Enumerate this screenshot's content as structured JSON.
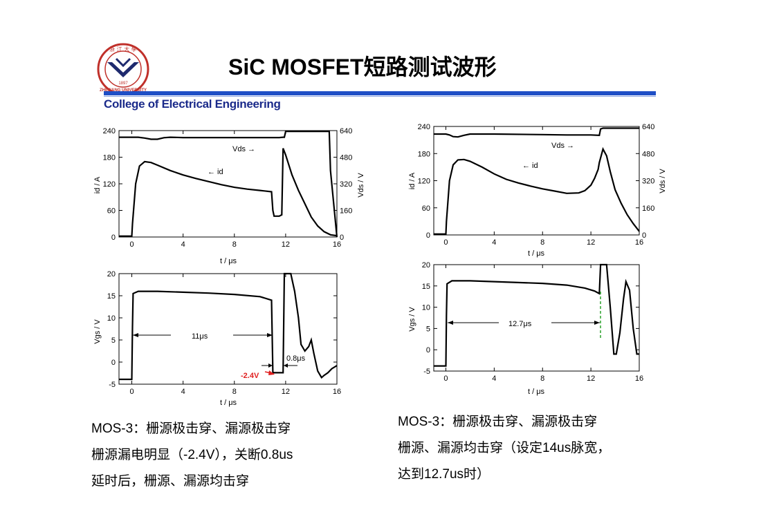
{
  "header": {
    "title": "SiC MOSFET短路测试波形",
    "college": "College of Electrical Engineering",
    "logo_text_top": "浙 江 大 學",
    "logo_year": "1897",
    "logo_text_bottom": "ZHEJIANG UNIVERSITY"
  },
  "captions": {
    "left": [
      "MOS-3：栅源极击穿、漏源极击穿",
      "栅源漏电明显（-2.4V），关断0.8us",
      "延时后，栅源、漏源均击穿"
    ],
    "right": [
      "MOS-3：栅源极击穿、漏源极击穿",
      "栅源、漏源均击穿（设定14us脉宽，",
      "达到12.7us时）"
    ]
  },
  "chart_data": [
    {
      "id": "left-top",
      "type": "line",
      "xlabel": "t / μs",
      "ylabel": "id / A",
      "y2label": "Vds / V",
      "xlim": [
        -1,
        16
      ],
      "ylim": [
        0,
        240
      ],
      "y2lim": [
        0,
        640
      ],
      "xticks": [
        "0",
        "4",
        "8",
        "12",
        "16"
      ],
      "yticks": [
        "0",
        "60",
        "120",
        "180",
        "240"
      ],
      "y2ticks": [
        "0",
        "160",
        "320",
        "480",
        "640"
      ],
      "annotations": [
        {
          "text": "Vds →"
        },
        {
          "text": "← id"
        }
      ],
      "series": [
        {
          "name": "id",
          "axis": "y",
          "x": [
            -1,
            0,
            0.05,
            0.3,
            0.6,
            1,
            1.5,
            2,
            3,
            4,
            5,
            6,
            7,
            8,
            9,
            10,
            10.9,
            11,
            11.1,
            11.5,
            11.7,
            11.8,
            12,
            12.5,
            13,
            13.5,
            14,
            14.5,
            15,
            15.5,
            16
          ],
          "y": [
            2,
            2,
            30,
            120,
            160,
            170,
            168,
            162,
            150,
            140,
            132,
            125,
            118,
            112,
            108,
            105,
            102,
            60,
            47,
            47,
            50,
            200,
            185,
            140,
            105,
            75,
            45,
            25,
            12,
            5,
            3
          ]
        },
        {
          "name": "Vds",
          "axis": "y2",
          "x": [
            -1,
            0,
            0.5,
            1,
            1.5,
            2,
            2.5,
            3,
            4,
            6,
            8,
            10,
            11,
            11.5,
            11.8,
            11.9,
            12,
            12.5,
            14,
            15,
            15.4,
            15.5,
            16
          ],
          "y": [
            600,
            600,
            600,
            595,
            588,
            588,
            597,
            600,
            598,
            598,
            598,
            598,
            598,
            598,
            600,
            600,
            635,
            635,
            635,
            635,
            635,
            400,
            0
          ]
        }
      ]
    },
    {
      "id": "left-bottom",
      "type": "line",
      "xlabel": "t / μs",
      "ylabel": "Vgs / V",
      "xlim": [
        -1,
        16
      ],
      "ylim": [
        -5,
        20
      ],
      "xticks": [
        "0",
        "4",
        "8",
        "12",
        "16"
      ],
      "yticks": [
        "-5",
        "0",
        "5",
        "10",
        "15",
        "20"
      ],
      "annotations": [
        {
          "text": "11μs"
        },
        {
          "text": "0.8μs"
        },
        {
          "text": "-2.4V",
          "color": "#e02020"
        }
      ],
      "series": [
        {
          "name": "Vgs",
          "x": [
            -1,
            0,
            0.05,
            0.1,
            0.5,
            1,
            2,
            4,
            6,
            8,
            10,
            10.9,
            11,
            11.1,
            11.5,
            11.7,
            11.8,
            11.9,
            12,
            12.4,
            12.7,
            13,
            13.2,
            13.5,
            13.8,
            14,
            14.2,
            14.5,
            14.8,
            15,
            15.3,
            15.6,
            16
          ],
          "y": [
            -3.9,
            -3.9,
            8,
            15.5,
            16,
            16,
            16,
            15.8,
            15.6,
            15.3,
            14.8,
            14,
            -2.3,
            -2.4,
            -2.4,
            -2.4,
            -2.4,
            20,
            20,
            20,
            16,
            10,
            4,
            2.5,
            3.5,
            5,
            2,
            -2,
            -3.5,
            -3,
            -2.4,
            -1.5,
            -0.8
          ]
        }
      ]
    },
    {
      "id": "right-top",
      "type": "line",
      "xlabel": "t / μs",
      "ylabel": "id / A",
      "y2label": "Vds / V",
      "xlim": [
        -1,
        16
      ],
      "ylim": [
        0,
        240
      ],
      "y2lim": [
        0,
        640
      ],
      "xticks": [
        "0",
        "4",
        "8",
        "12",
        "16"
      ],
      "yticks": [
        "0",
        "60",
        "120",
        "180",
        "240"
      ],
      "y2ticks": [
        "0",
        "160",
        "320",
        "480",
        "640"
      ],
      "annotations": [
        {
          "text": "Vds →"
        },
        {
          "text": "← id"
        }
      ],
      "series": [
        {
          "name": "id",
          "axis": "y",
          "x": [
            -1,
            0,
            0.05,
            0.3,
            0.6,
            1,
            1.5,
            2,
            3,
            4,
            5,
            6,
            7,
            8,
            9,
            10,
            11,
            11.5,
            12,
            12.3,
            12.6,
            12.7,
            13,
            13.3,
            13.6,
            14,
            14.5,
            15,
            15.5,
            16
          ],
          "y": [
            2,
            2,
            30,
            120,
            155,
            166,
            167,
            163,
            150,
            135,
            123,
            115,
            108,
            102,
            97,
            92,
            93,
            98,
            110,
            125,
            145,
            160,
            190,
            175,
            140,
            100,
            70,
            45,
            25,
            8
          ]
        },
        {
          "name": "Vds",
          "axis": "y2",
          "x": [
            -1,
            0,
            0.3,
            0.6,
            1,
            1.5,
            2,
            4,
            8,
            10,
            12,
            12.7,
            12.8,
            13,
            14,
            16
          ],
          "y": [
            595,
            595,
            590,
            580,
            578,
            588,
            595,
            595,
            592,
            590,
            590,
            588,
            625,
            630,
            630,
            630
          ]
        }
      ]
    },
    {
      "id": "right-bottom",
      "type": "line",
      "xlabel": "t / μs",
      "ylabel": "Vgs / V",
      "xlim": [
        -1,
        16
      ],
      "ylim": [
        -5,
        20
      ],
      "xticks": [
        "0",
        "4",
        "8",
        "12",
        "16"
      ],
      "yticks": [
        "-5",
        "0",
        "5",
        "10",
        "15",
        "20"
      ],
      "annotations": [
        {
          "text": "12.7μs"
        }
      ],
      "series": [
        {
          "name": "Vgs",
          "x": [
            -1,
            0,
            0.05,
            0.1,
            0.5,
            2,
            4,
            6,
            8,
            10,
            11.5,
            12.3,
            12.7,
            12.8,
            12.9,
            13.3,
            13.6,
            13.9,
            14.1,
            14.4,
            14.7,
            14.9,
            15.2,
            15.5,
            15.8,
            16
          ],
          "y": [
            -3.8,
            -3.8,
            8,
            15.5,
            16.2,
            16.2,
            16,
            15.8,
            15.6,
            15.2,
            14.5,
            13.8,
            13.2,
            20,
            20,
            20,
            10,
            -1,
            -1,
            4,
            12,
            16,
            14,
            5,
            -1,
            -1
          ]
        }
      ]
    }
  ]
}
